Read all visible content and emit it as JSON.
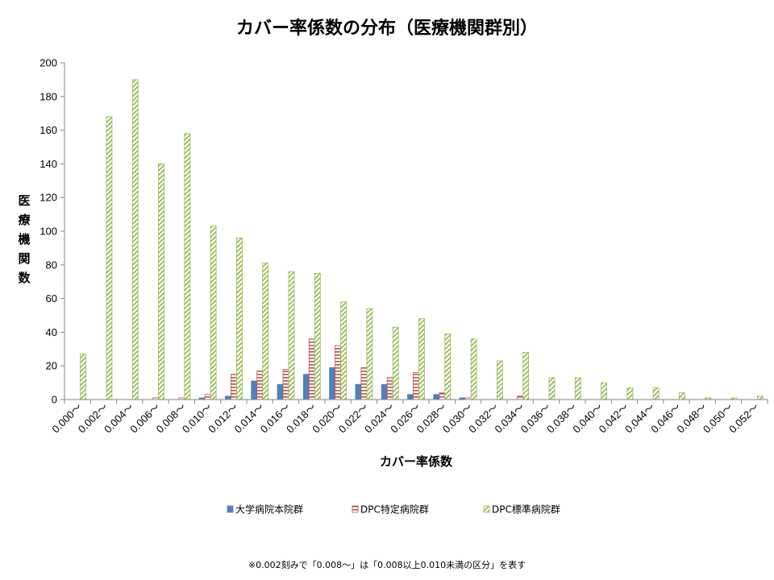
{
  "chart_data": {
    "type": "bar",
    "title": "カバー率係数の分布（医療機関群別）",
    "xlabel": "カバー率係数",
    "ylabel": "医療機関数",
    "ylim": [
      0,
      200
    ],
    "yticks": [
      0,
      20,
      40,
      60,
      80,
      100,
      120,
      140,
      160,
      180,
      200
    ],
    "grid": false,
    "legend_position": "bottom",
    "categories": [
      "0.000～",
      "0.002～",
      "0.004～",
      "0.006～",
      "0.008～",
      "0.010～",
      "0.012～",
      "0.014～",
      "0.016～",
      "0.018～",
      "0.020～",
      "0.022～",
      "0.024～",
      "0.026～",
      "0.028～",
      "0.030～",
      "0.032～",
      "0.034～",
      "0.036～",
      "0.038～",
      "0.040～",
      "0.042～",
      "0.044～",
      "0.046～",
      "0.048～",
      "0.050～",
      "0.052～"
    ],
    "series": [
      {
        "name": "大学病院本院群",
        "color": "#4f81bd",
        "pattern": "solid",
        "values": [
          0,
          0,
          0,
          0,
          0,
          1,
          2,
          11,
          9,
          15,
          19,
          9,
          9,
          3,
          3,
          1,
          0,
          0,
          0,
          0,
          0,
          0,
          0,
          0,
          0,
          0,
          0
        ]
      },
      {
        "name": "DPC特定病院群",
        "color": "#c0504d",
        "pattern": "horizontal-stripes",
        "values": [
          0,
          0,
          0,
          1,
          1,
          3,
          15,
          17,
          18,
          36,
          32,
          19,
          13,
          16,
          4,
          1,
          0,
          2,
          0,
          0,
          0,
          0,
          0,
          0,
          0,
          0,
          0
        ]
      },
      {
        "name": "DPC標準病院群",
        "color": "#9bbb59",
        "pattern": "diagonal-stripes",
        "values": [
          27,
          168,
          190,
          140,
          158,
          103,
          96,
          81,
          76,
          75,
          58,
          54,
          43,
          48,
          39,
          36,
          23,
          28,
          13,
          13,
          10,
          7,
          7,
          4,
          1,
          1,
          2
        ]
      }
    ],
    "footnote": "※0.002刻みで「0.008～」は「0.008以上0.010未満の区分」を表す"
  }
}
